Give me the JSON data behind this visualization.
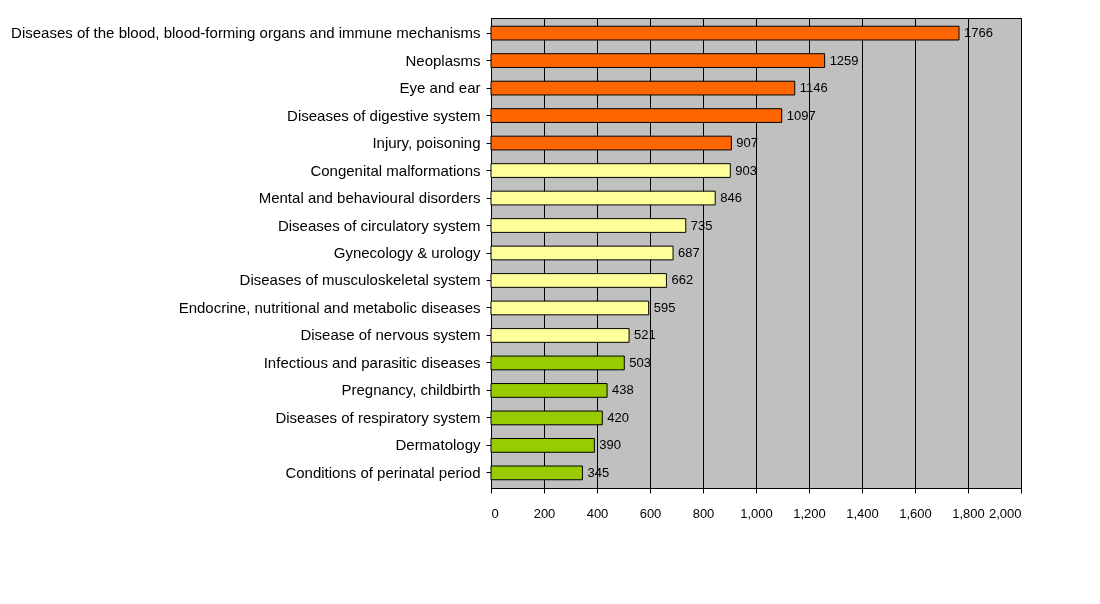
{
  "chart_data": {
    "type": "bar",
    "orientation": "horizontal",
    "categories": [
      "Diseases of the blood, blood-forming organs and immune mechanisms",
      "Neoplasms",
      "Eye and ear",
      "Diseases of digestive system",
      "Injury, poisoning",
      "Congenital malformations",
      "Mental and behavioural disorders",
      "Diseases of circulatory system",
      "Gynecology & urology",
      "Diseases of musculoskeletal system",
      "Endocrine, nutritional and metabolic diseases",
      "Disease of nervous system",
      "Infectious and parasitic diseases",
      "Pregnancy, childbirth",
      "Diseases of respiratory system",
      "Dermatology",
      "Conditions of perinatal period"
    ],
    "values": [
      1766,
      1259,
      1146,
      1097,
      907,
      903,
      846,
      735,
      687,
      662,
      595,
      521,
      503,
      438,
      420,
      390,
      345
    ],
    "colors": [
      "#ff6600",
      "#ff6600",
      "#ff6600",
      "#ff6600",
      "#ff6600",
      "#ffff99",
      "#ffff99",
      "#ffff99",
      "#ffff99",
      "#ffff99",
      "#ffff99",
      "#ffff99",
      "#99cc00",
      "#99cc00",
      "#99cc00",
      "#99cc00",
      "#99cc00"
    ],
    "xlim": [
      0,
      2000
    ],
    "xticks": [
      0,
      200,
      400,
      600,
      800,
      {
        "value": 1000,
        "label": "1,000"
      },
      {
        "value": 1200,
        "label": "1,200"
      },
      {
        "value": 1400,
        "label": "1,400"
      },
      {
        "value": 1600,
        "label": "1,600"
      },
      {
        "value": 1800,
        "label": "1,800"
      },
      {
        "value": 2000,
        "label": "2,000"
      }
    ],
    "grid": "x",
    "data_labels": true
  }
}
